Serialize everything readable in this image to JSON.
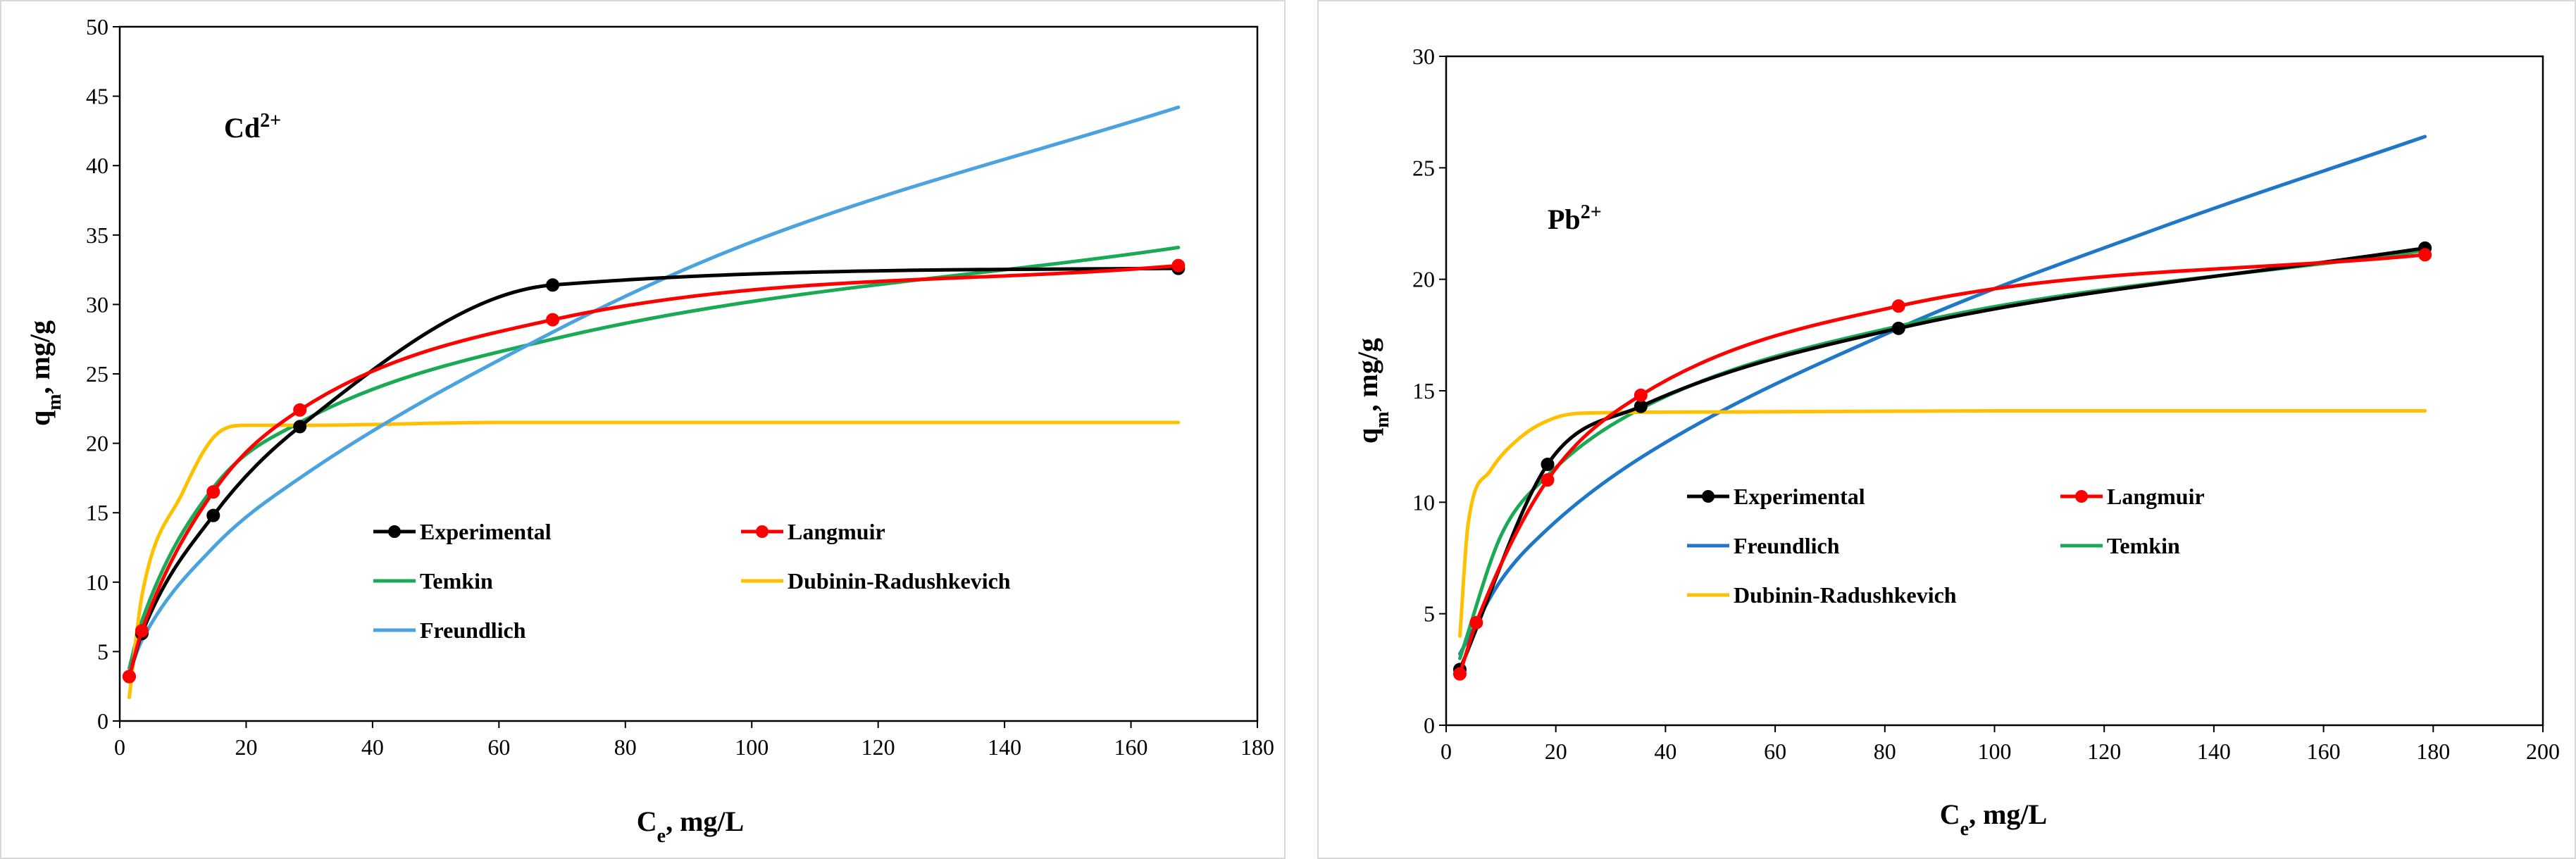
{
  "chart_data": [
    {
      "type": "line",
      "annotation": {
        "base": "Cd",
        "sup": "2+"
      },
      "ylabel": {
        "base": "q",
        "sub": "m",
        "rest": ", mg/g"
      },
      "xlabel": {
        "base": "C",
        "sub": "e",
        "rest": ", mg/L"
      },
      "xlim": [
        0,
        180
      ],
      "ylim": [
        0,
        50
      ],
      "xticks": [
        "0",
        "20",
        "40",
        "60",
        "80",
        "100",
        "120",
        "140",
        "160",
        "180"
      ],
      "yticks": [
        "0",
        "5",
        "10",
        "15",
        "20",
        "25",
        "30",
        "35",
        "40",
        "45",
        "50"
      ],
      "grid": false,
      "series": [
        {
          "name": "Experimental",
          "color": "#000000",
          "marker": true,
          "smooth": true,
          "x": [
            1.5,
            3.5,
            14.8,
            28.5,
            68.5,
            167.5
          ],
          "y": [
            3.2,
            6.3,
            14.8,
            21.2,
            31.4,
            32.6
          ]
        },
        {
          "name": "Langmuir",
          "color": "#ff0000",
          "marker": true,
          "smooth": true,
          "x": [
            1.5,
            3.5,
            14.8,
            28.5,
            68.5,
            167.5
          ],
          "y": [
            3.2,
            6.5,
            16.5,
            22.4,
            28.9,
            32.8
          ]
        },
        {
          "name": "Temkin",
          "color": "#1aaa55",
          "marker": false,
          "smooth": true,
          "x": [
            1.5,
            3.5,
            14.8,
            28.5,
            68.5,
            167.5
          ],
          "y": [
            3.8,
            7.2,
            16.8,
            21.5,
            27.5,
            34.1
          ]
        },
        {
          "name": "Dubinin-Radushkevich",
          "color": "#ffc000",
          "marker": false,
          "smooth": true,
          "x": [
            1.5,
            3.5,
            10,
            15,
            20,
            30,
            60,
            100,
            167.5
          ],
          "y": [
            1.7,
            9.0,
            16.5,
            20.5,
            21.3,
            21.3,
            21.5,
            21.5,
            21.5
          ]
        },
        {
          "name": "Freundlich",
          "color": "#4aa3df",
          "marker": false,
          "smooth": true,
          "x": [
            1.5,
            3.5,
            14.8,
            28.5,
            68.5,
            100,
            167.5
          ],
          "y": [
            3.5,
            5.8,
            12.5,
            17.5,
            28.0,
            34.5,
            44.2
          ]
        }
      ],
      "legend": {
        "rows": [
          [
            "Experimental",
            "Langmuir"
          ],
          [
            "Temkin",
            "Dubinin-Radushkevich"
          ],
          [
            "Freundlich"
          ]
        ]
      }
    },
    {
      "type": "line",
      "annotation": {
        "base": "Pb",
        "sup": "2+"
      },
      "ylabel": {
        "base": "q",
        "sub": "m",
        "rest": ", mg/g"
      },
      "xlabel": {
        "base": "C",
        "sub": "e",
        "rest": ", mg/L"
      },
      "xlim": [
        0,
        200
      ],
      "ylim": [
        0,
        30
      ],
      "xticks": [
        "0",
        "20",
        "40",
        "60",
        "80",
        "100",
        "120",
        "140",
        "160",
        "180",
        "200"
      ],
      "yticks": [
        "0",
        "5",
        "10",
        "15",
        "20",
        "25",
        "30"
      ],
      "grid": false,
      "series": [
        {
          "name": "Experimental",
          "color": "#000000",
          "marker": true,
          "smooth": true,
          "x": [
            2.5,
            18.5,
            35.5,
            82.5,
            178.5
          ],
          "y": [
            2.5,
            11.7,
            14.3,
            17.8,
            21.4
          ]
        },
        {
          "name": "Langmuir",
          "color": "#ff0000",
          "marker": true,
          "smooth": true,
          "x": [
            2.5,
            5.5,
            18.5,
            35.5,
            82.5,
            178.5
          ],
          "y": [
            2.3,
            4.6,
            11.0,
            14.8,
            18.8,
            21.1
          ]
        },
        {
          "name": "Freundlich",
          "color": "#1f77c8",
          "marker": false,
          "smooth": true,
          "x": [
            2.5,
            10,
            18.5,
            35.5,
            82.5,
            130,
            178.5
          ],
          "y": [
            3.2,
            6.5,
            8.8,
            12.0,
            17.8,
            22.3,
            26.4
          ]
        },
        {
          "name": "Temkin",
          "color": "#1aaa55",
          "marker": false,
          "smooth": true,
          "x": [
            2.5,
            10,
            18.5,
            35.5,
            82.5,
            178.5
          ],
          "y": [
            3.0,
            8.5,
            11.2,
            14.2,
            17.9,
            21.3
          ]
        },
        {
          "name": "Dubinin-Radushkevich",
          "color": "#ffc000",
          "marker": false,
          "smooth": true,
          "x": [
            2.5,
            4,
            8,
            14,
            20,
            25,
            50,
            100,
            178.5
          ],
          "y": [
            4.0,
            9.0,
            11.4,
            13.0,
            13.8,
            14.0,
            14.05,
            14.1,
            14.1
          ]
        }
      ],
      "legend": {
        "rows": [
          [
            "Experimental",
            "Langmuir"
          ],
          [
            "Freundlich",
            "Temkin"
          ],
          [
            "Dubinin-Radushkevich"
          ]
        ]
      }
    }
  ]
}
